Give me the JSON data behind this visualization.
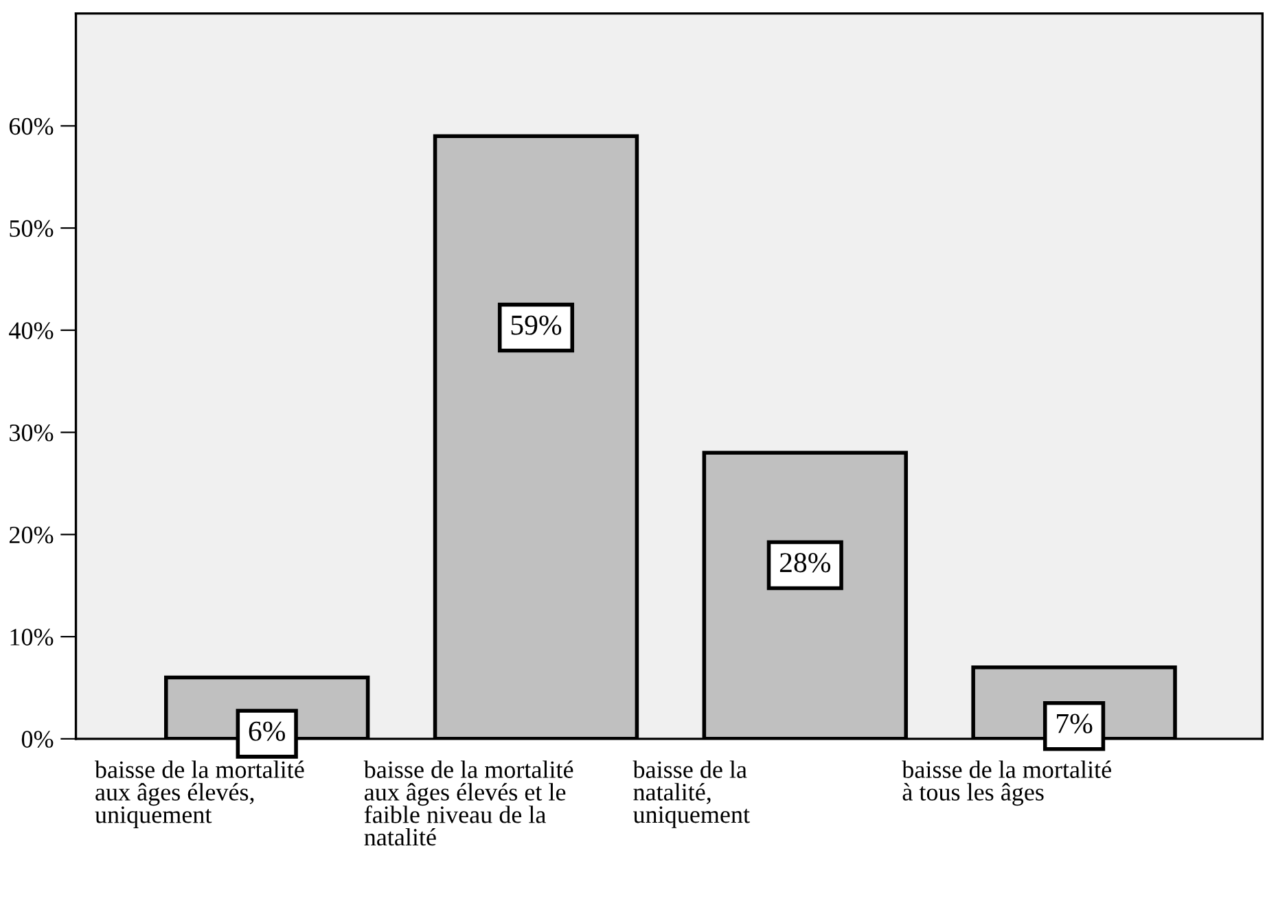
{
  "chart_data": {
    "type": "bar",
    "categories": [
      "baisse de la mortalité\naux âges élevés,\nuniquement",
      "baisse de la mortalité\naux âges élevés et le\nfaible niveau de la\nnatalité",
      "baisse de la\nnatalité,\nuniquement",
      "baisse de la mortalité\nà tous les âges"
    ],
    "values": [
      6,
      59,
      28,
      7
    ],
    "color": "#c0c0c0",
    "value_labels": [
      "6%",
      "59%",
      "28%",
      "7%"
    ],
    "ylim": [
      0,
      71
    ],
    "yticks": [
      {
        "value": 0,
        "label": "0%"
      },
      {
        "value": 10,
        "label": "10%"
      },
      {
        "value": 20,
        "label": "20%"
      },
      {
        "value": 30,
        "label": "30%"
      },
      {
        "value": 40,
        "label": "40%"
      },
      {
        "value": 50,
        "label": "50%"
      },
      {
        "value": 60,
        "label": "60%"
      }
    ],
    "grid": false,
    "legend": false
  }
}
